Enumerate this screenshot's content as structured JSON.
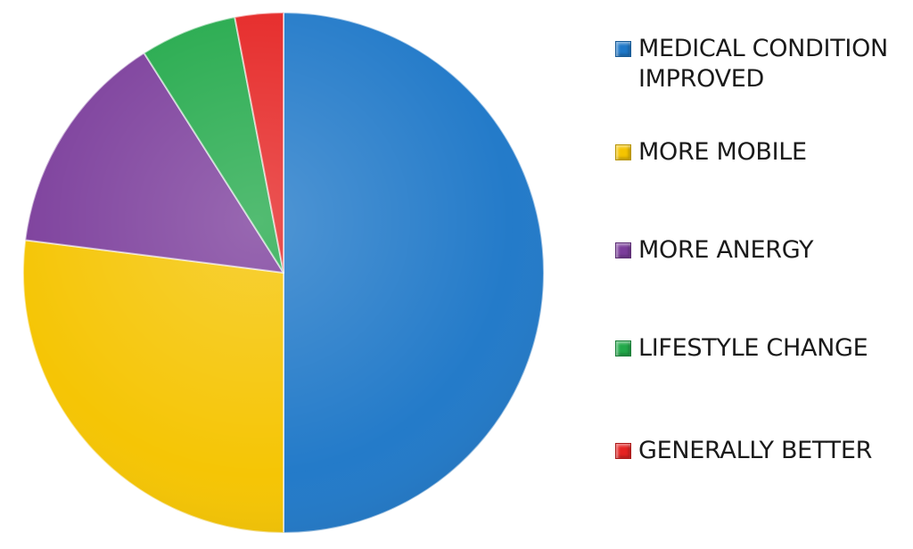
{
  "chart_data": {
    "type": "pie",
    "title": "",
    "start_angle_deg": 0,
    "direction": "clockwise",
    "legend_position": "right",
    "slices": [
      {
        "label": "MEDICAL CONDITION IMPROVED",
        "value": 50,
        "color": "#1f78c8"
      },
      {
        "label": "MORE MOBILE",
        "value": 27,
        "color": "#f5c400"
      },
      {
        "label": "MORE ANERGY",
        "value": 14,
        "color": "#7b3d9b"
      },
      {
        "label": "LIFESTYLE CHANGE",
        "value": 6,
        "color": "#22a94a"
      },
      {
        "label": "GENERALLY BETTER",
        "value": 3,
        "color": "#e52322"
      }
    ]
  },
  "legend": {
    "items": [
      {
        "label": "MEDICAL CONDITION\nIMPROVED",
        "color": "#1f78c8",
        "icon": "blue-square-icon"
      },
      {
        "label": "MORE MOBILE",
        "color": "#f5c400",
        "icon": "yellow-square-icon"
      },
      {
        "label": "MORE ANERGY",
        "color": "#7b3d9b",
        "icon": "purple-square-icon"
      },
      {
        "label": "LIFESTYLE CHANGE",
        "color": "#22a94a",
        "icon": "green-square-icon"
      },
      {
        "label": "GENERALLY BETTER",
        "color": "#e52322",
        "icon": "red-square-icon"
      }
    ]
  }
}
